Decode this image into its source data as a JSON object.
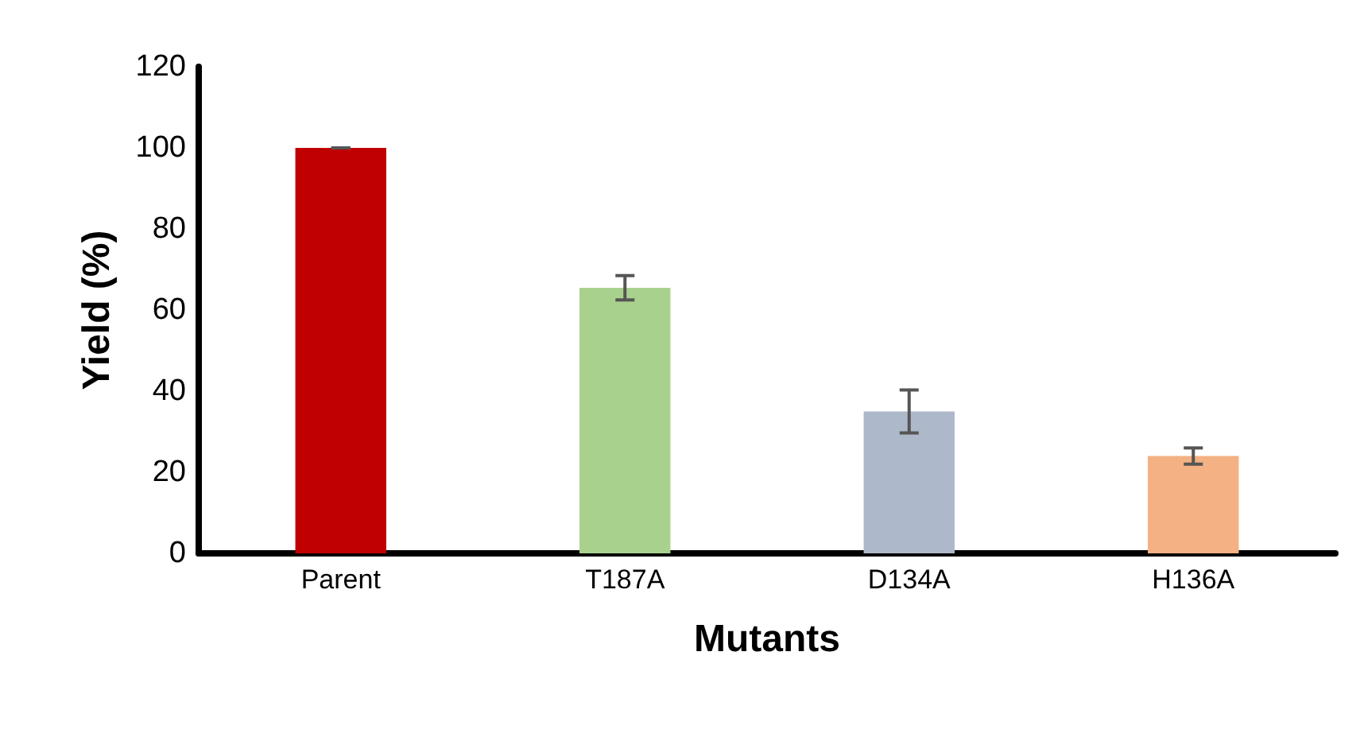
{
  "chart_data": {
    "type": "bar",
    "xlabel": "Mutants",
    "ylabel": "Yield (%)",
    "categories": [
      "Parent",
      "T187A",
      "D134A",
      "H136A"
    ],
    "values": [
      100,
      65.5,
      35,
      24
    ],
    "errors": [
      0,
      3,
      5.3,
      2
    ],
    "colors": [
      "#c00000",
      "#a9d18e",
      "#adb9ca",
      "#f4b183"
    ],
    "ylim": [
      0,
      120
    ],
    "yticks": [
      0,
      20,
      40,
      60,
      80,
      100,
      120
    ],
    "grid": false
  }
}
